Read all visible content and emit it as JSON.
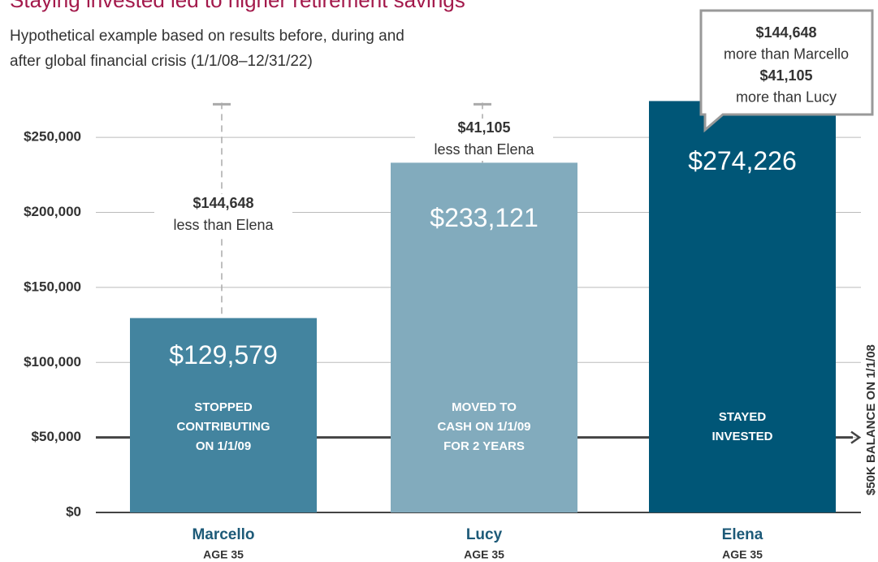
{
  "chart_data": {
    "type": "bar",
    "title": "Staying invested led to higher retirement savings",
    "subtitle": [
      "Hypothetical example based on results before, during and",
      "after global financial crisis (1/1/08–12/31/22)"
    ],
    "categories": [
      "Marcello",
      "Lucy",
      "Elena"
    ],
    "category_sublabels": [
      "AGE 35",
      "AGE 35",
      "AGE 35"
    ],
    "values": [
      129579,
      233121,
      274226
    ],
    "value_labels": [
      "$129,579",
      "$233,121",
      "$274,226"
    ],
    "colors": [
      "#43849f",
      "#82abbd",
      "#005677"
    ],
    "bar_notes": [
      [
        "STOPPED",
        "CONTRIBUTING",
        "ON 1/1/09"
      ],
      [
        "MOVED TO",
        "CASH ON 1/1/09",
        "FOR 2 YEARS"
      ],
      [
        "STAYED",
        "INVESTED"
      ]
    ],
    "differences": [
      [
        "$144,648",
        "less than Elena"
      ],
      [
        "$41,105",
        "less than Elena"
      ],
      null
    ],
    "callout": [
      "$144,648",
      "more than Marcello",
      "$41,105",
      "more than Lucy"
    ],
    "balance": 50000,
    "balance_label": "$50K BALANCE ON 1/1/08",
    "ylim": [
      0,
      275000
    ],
    "yticks": [
      {
        "value": 0,
        "label": "$0"
      },
      {
        "value": 50000,
        "label": "$50,000"
      },
      {
        "value": 100000,
        "label": "$100,000"
      },
      {
        "value": 150000,
        "label": "$150,000"
      },
      {
        "value": 200000,
        "label": "$200,000"
      },
      {
        "value": 250000,
        "label": "$250,000"
      }
    ],
    "grid": true
  }
}
